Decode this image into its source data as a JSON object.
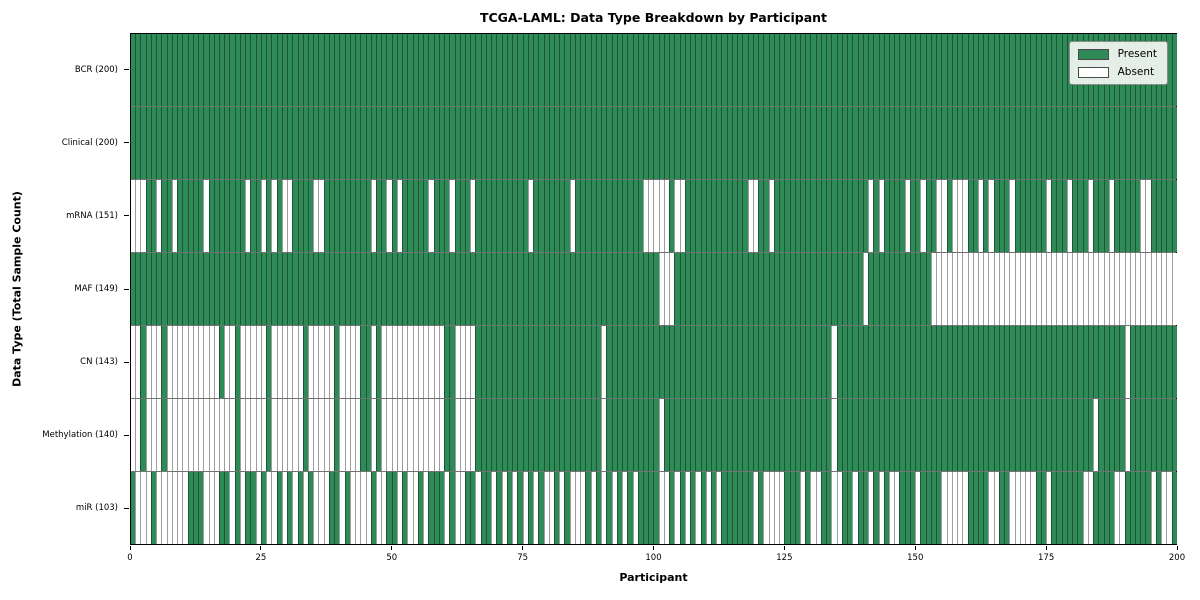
{
  "title": "TCGA-LAML: Data Type Breakdown by Participant",
  "xlabel": "Participant",
  "ylabel": "Data Type (Total Sample Count)",
  "legend": {
    "present_label": "Present",
    "absent_label": "Absent"
  },
  "colors": {
    "present": "#2e8b57",
    "absent": "#ffffff"
  },
  "x_ticks": [
    0,
    25,
    50,
    75,
    100,
    125,
    150,
    175,
    200
  ],
  "chart_data": {
    "type": "heatmap",
    "x_range": [
      0,
      200
    ],
    "n_participants": 200,
    "legend_position": "upper right",
    "rows": [
      {
        "label": "BCR (200)",
        "present_count": 200,
        "absent_indices": []
      },
      {
        "label": "Clinical (200)",
        "present_count": 200,
        "absent_indices": []
      },
      {
        "label": "mRNA (151)",
        "present_count": 151,
        "absent_indices": [
          0,
          1,
          2,
          5,
          8,
          14,
          22,
          25,
          27,
          29,
          30,
          35,
          36,
          46,
          49,
          51,
          57,
          61,
          65,
          76,
          84,
          98,
          99,
          100,
          101,
          102,
          104,
          105,
          118,
          119,
          122,
          141,
          143,
          148,
          151,
          154,
          155,
          157,
          158,
          159,
          162,
          164,
          168,
          175,
          179,
          183,
          187,
          193,
          194
        ]
      },
      {
        "label": "MAF (149)",
        "present_count": 149,
        "absent_indices": [
          101,
          102,
          103,
          140,
          153,
          154,
          155,
          156,
          157,
          158,
          159,
          160,
          161,
          162,
          163,
          164,
          165,
          166,
          167,
          168,
          169,
          170,
          171,
          172,
          173,
          174,
          175,
          176,
          177,
          178,
          179,
          180,
          181,
          182,
          183,
          184,
          185,
          186,
          187,
          188,
          189,
          190,
          191,
          192,
          193,
          194,
          195,
          196,
          197,
          198,
          199
        ]
      },
      {
        "label": "CN (143)",
        "present_count": 143,
        "absent_indices": [
          0,
          1,
          3,
          4,
          5,
          7,
          8,
          9,
          10,
          11,
          12,
          13,
          14,
          15,
          16,
          18,
          19,
          21,
          22,
          23,
          24,
          25,
          27,
          28,
          29,
          30,
          31,
          32,
          34,
          35,
          36,
          37,
          38,
          40,
          41,
          42,
          43,
          46,
          48,
          49,
          50,
          51,
          52,
          53,
          54,
          55,
          56,
          57,
          58,
          59,
          62,
          63,
          64,
          65,
          90,
          134,
          190
        ]
      },
      {
        "label": "Methylation (140)",
        "present_count": 140,
        "absent_indices": [
          0,
          1,
          3,
          4,
          5,
          7,
          8,
          9,
          10,
          11,
          12,
          13,
          14,
          15,
          16,
          17,
          18,
          19,
          21,
          22,
          23,
          24,
          25,
          27,
          28,
          29,
          30,
          31,
          32,
          34,
          35,
          36,
          37,
          38,
          40,
          41,
          42,
          43,
          46,
          48,
          49,
          50,
          51,
          52,
          53,
          54,
          55,
          56,
          57,
          58,
          59,
          62,
          63,
          64,
          65,
          90,
          101,
          134,
          184,
          190
        ]
      },
      {
        "label": "miR (103)",
        "present_count": 103,
        "absent_indices": [
          1,
          2,
          3,
          5,
          6,
          7,
          8,
          9,
          10,
          14,
          15,
          16,
          19,
          21,
          24,
          26,
          27,
          29,
          31,
          33,
          35,
          36,
          37,
          40,
          42,
          43,
          44,
          45,
          47,
          48,
          51,
          53,
          54,
          56,
          60,
          62,
          63,
          66,
          69,
          71,
          73,
          75,
          77,
          79,
          80,
          82,
          84,
          85,
          86,
          88,
          90,
          92,
          94,
          96,
          101,
          102,
          104,
          106,
          108,
          110,
          112,
          119,
          121,
          122,
          123,
          124,
          128,
          130,
          131,
          134,
          135,
          138,
          141,
          143,
          145,
          146,
          150,
          155,
          156,
          157,
          158,
          159,
          164,
          165,
          168,
          169,
          170,
          171,
          172,
          175,
          182,
          183,
          188,
          189,
          195,
          197,
          198
        ]
      }
    ]
  }
}
